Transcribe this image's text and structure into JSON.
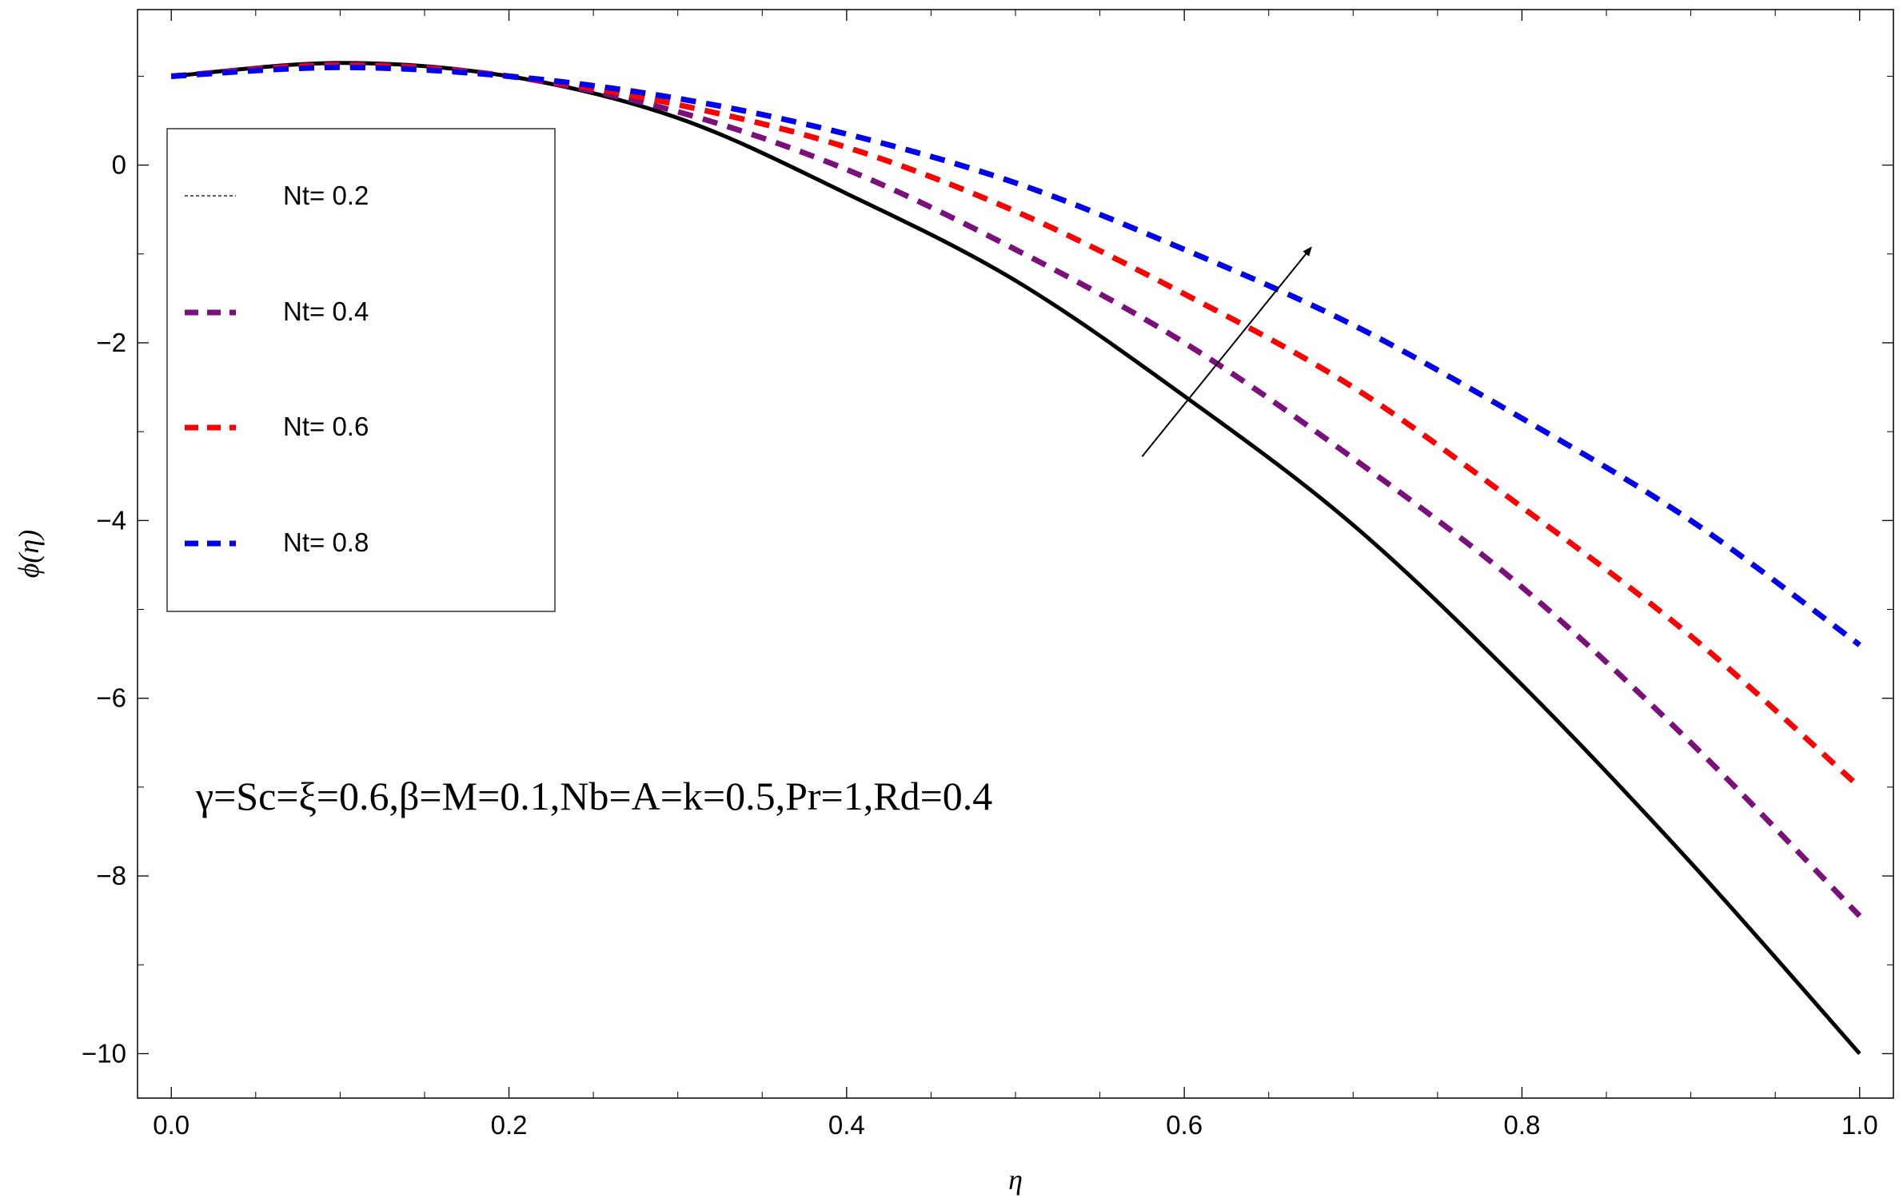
{
  "chart_data": {
    "type": "line",
    "xlabel": "η",
    "ylabel": "ϕ(η)",
    "xlim": [
      -0.02,
      1.02
    ],
    "ylim": [
      -10.5,
      1.75
    ],
    "x_ticks": [
      0.0,
      0.2,
      0.4,
      0.6,
      0.8,
      1.0
    ],
    "x_tick_labels": [
      "0.0",
      "0.2",
      "0.4",
      "0.6",
      "0.8",
      "1.0"
    ],
    "y_ticks": [
      0,
      -2,
      -4,
      -6,
      -8,
      -10
    ],
    "y_tick_labels": [
      "0",
      "−2",
      "−4",
      "−6",
      "−8",
      "−10"
    ],
    "grid": false,
    "legend_position": "left",
    "x": [
      0.0,
      0.1,
      0.2,
      0.3,
      0.4,
      0.5,
      0.6,
      0.7,
      0.8,
      0.9,
      1.0
    ],
    "series": [
      {
        "name": "Nt= 0.2",
        "color": "#000000",
        "style": "solid",
        "values": [
          1.0,
          1.15,
          1.0,
          0.53,
          -0.32,
          -1.3,
          -2.6,
          -4.05,
          -5.85,
          -7.85,
          -10.0
        ]
      },
      {
        "name": "Nt= 0.4",
        "color": "#7b0f7b",
        "style": "dashed",
        "values": [
          1.0,
          1.13,
          1.0,
          0.6,
          -0.05,
          -0.95,
          -2.0,
          -3.3,
          -4.75,
          -6.5,
          -8.45
        ]
      },
      {
        "name": "Nt= 0.6",
        "color": "#ff0000",
        "style": "dashed",
        "values": [
          1.0,
          1.12,
          1.0,
          0.68,
          0.2,
          -0.52,
          -1.45,
          -2.5,
          -3.85,
          -5.3,
          -7.0
        ]
      },
      {
        "name": "Nt= 0.8",
        "color": "#0000ee",
        "style": "dashed",
        "values": [
          1.0,
          1.1,
          1.0,
          0.75,
          0.35,
          -0.2,
          -0.95,
          -1.8,
          -2.85,
          -4.0,
          -5.4
        ]
      }
    ],
    "annotation": "γ=Sc=ξ=0.6,β=M=0.1,Nb=A=k=0.5,Pr=1,Rd=0.4",
    "arrow": {
      "from": [
        0.575,
        -3.28
      ],
      "to": [
        0.675,
        -0.93
      ]
    }
  }
}
